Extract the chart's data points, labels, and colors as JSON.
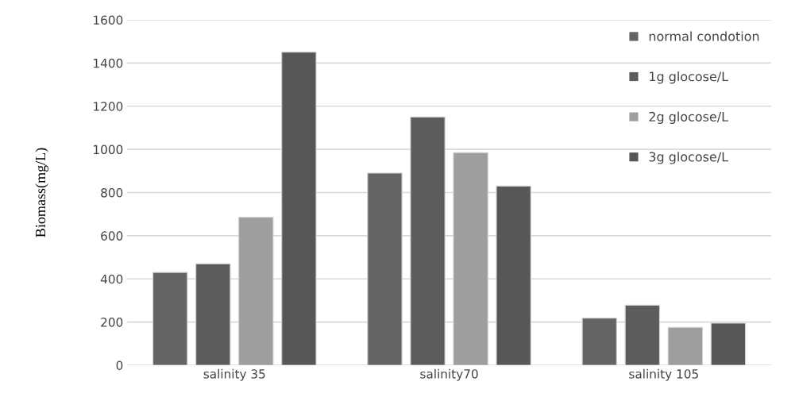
{
  "chart_data": {
    "type": "bar",
    "ylabel": "Biomass(mg/L)",
    "categories": [
      "salinity 35",
      "salinity70",
      "salinity 105"
    ],
    "series": [
      {
        "name": "normal condotion",
        "color": "#646464",
        "values": [
          430,
          890,
          218
        ]
      },
      {
        "name": "1g glocose/L",
        "color": "#5c5c5c",
        "values": [
          470,
          1150,
          278
        ]
      },
      {
        "name": "2g glocose/L",
        "color": "#9e9e9e",
        "values": [
          685,
          985,
          175
        ]
      },
      {
        "name": "3g glocose/L",
        "color": "#575757",
        "values": [
          1450,
          830,
          195
        ]
      }
    ],
    "ylim": [
      0,
      1600
    ],
    "yticks": [
      0,
      200,
      400,
      600,
      800,
      1000,
      1200,
      1400,
      1600
    ],
    "grid": "y",
    "legend": "top right"
  }
}
